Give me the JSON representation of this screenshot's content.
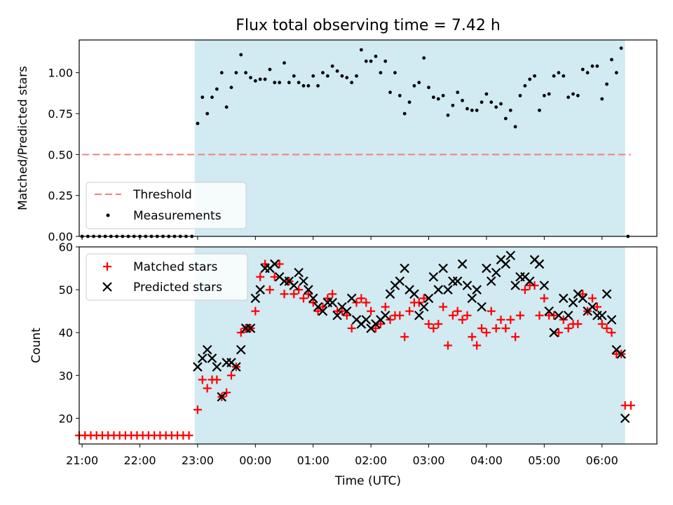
{
  "chart_data": [
    {
      "type": "scatter",
      "title": "Flux total observing time = 7.42 h",
      "ylabel": "Matched/Predicted stars",
      "xlim": [
        20.95,
        30.95
      ],
      "ylim": [
        0,
        1.2
      ],
      "yticks": [
        "0.00",
        "0.25",
        "0.50",
        "0.75",
        "1.00"
      ],
      "shaded_region": [
        22.95,
        30.4
      ],
      "shade_color": "#add8e6",
      "threshold": {
        "name": "Threshold",
        "value": 0.5,
        "color": "#f08080"
      },
      "legend": {
        "placement": "lower-left",
        "entries": [
          "Threshold",
          "Measurements"
        ]
      },
      "series": [
        {
          "name": "Measurements",
          "color": "#000000",
          "x": [
            21.0,
            21.1,
            21.2,
            21.3,
            21.4,
            21.5,
            21.6,
            21.7,
            21.8,
            21.9,
            22.0,
            22.1,
            22.2,
            22.3,
            22.4,
            22.5,
            22.6,
            22.7,
            22.8,
            22.9,
            23.0,
            23.083,
            23.167,
            23.25,
            23.333,
            23.417,
            23.5,
            23.583,
            23.667,
            23.75,
            23.833,
            23.917,
            24.0,
            24.083,
            24.167,
            24.25,
            24.333,
            24.417,
            24.5,
            24.583,
            24.667,
            24.75,
            24.833,
            24.917,
            25.0,
            25.083,
            25.167,
            25.25,
            25.333,
            25.417,
            25.5,
            25.583,
            25.667,
            25.75,
            25.833,
            25.917,
            26.0,
            26.083,
            26.167,
            26.25,
            26.333,
            26.417,
            26.5,
            26.583,
            26.667,
            26.75,
            26.833,
            26.917,
            27.0,
            27.083,
            27.167,
            27.25,
            27.333,
            27.417,
            27.5,
            27.583,
            27.667,
            27.75,
            27.833,
            27.917,
            28.0,
            28.083,
            28.167,
            28.25,
            28.333,
            28.417,
            28.5,
            28.583,
            28.667,
            28.75,
            28.833,
            28.917,
            29.0,
            29.083,
            29.167,
            29.25,
            29.333,
            29.417,
            29.5,
            29.583,
            29.667,
            29.75,
            29.833,
            29.917,
            30.0,
            30.083,
            30.167,
            30.25,
            30.333,
            30.45
          ],
          "y": [
            0,
            0,
            0,
            0,
            0,
            0,
            0,
            0,
            0,
            0,
            0,
            0,
            0,
            0,
            0,
            0,
            0,
            0,
            0,
            0,
            0.69,
            0.85,
            0.75,
            0.85,
            0.9,
            1.0,
            0.79,
            0.91,
            1.0,
            1.11,
            1.0,
            0.97,
            0.95,
            0.96,
            0.96,
            1.02,
            0.94,
            0.94,
            1.06,
            0.94,
            0.98,
            0.94,
            0.92,
            0.92,
            0.98,
            0.92,
            1.0,
            0.98,
            1.04,
            1.01,
            0.98,
            0.97,
            0.94,
            0.98,
            1.14,
            1.07,
            1.07,
            1.1,
            1.0,
            1.07,
            0.88,
            1.0,
            0.86,
            0.75,
            0.82,
            0.92,
            0.94,
            1.09,
            0.91,
            0.85,
            0.84,
            0.86,
            0.74,
            0.8,
            0.88,
            0.83,
            0.78,
            0.77,
            0.77,
            0.82,
            0.87,
            0.82,
            0.79,
            0.81,
            0.72,
            0.77,
            0.67,
            0.86,
            0.92,
            0.96,
            0.98,
            0.77,
            0.86,
            0.87,
            0.98,
            1.0,
            0.98,
            0.85,
            0.87,
            0.86,
            1.02,
            1.0,
            1.04,
            1.04,
            0.84,
            0.93,
            1.08,
            1.0,
            1.15,
            0
          ]
        }
      ]
    },
    {
      "type": "scatter",
      "xlabel": "Time (UTC)",
      "ylabel": "Count",
      "xlim": [
        20.95,
        30.95
      ],
      "ylim": [
        14,
        60
      ],
      "xticks": [
        21,
        22,
        23,
        24,
        25,
        26,
        27,
        28,
        29,
        30
      ],
      "xtick_labels": [
        "21:00",
        "22:00",
        "23:00",
        "00:00",
        "01:00",
        "02:00",
        "03:00",
        "04:00",
        "05:00",
        "06:00"
      ],
      "yticks": [
        20,
        30,
        40,
        50,
        60
      ],
      "shaded_region": [
        22.95,
        30.4
      ],
      "shade_color": "#add8e6",
      "legend": {
        "placement": "upper-left",
        "entries": [
          "Matched stars",
          "Predicted stars"
        ]
      },
      "series": [
        {
          "name": "Matched stars",
          "marker": "plus",
          "color": "#ff0000",
          "x": [
            20.95,
            21.05,
            21.15,
            21.25,
            21.35,
            21.45,
            21.55,
            21.65,
            21.75,
            21.85,
            21.95,
            22.05,
            22.15,
            22.25,
            22.35,
            22.45,
            22.55,
            22.65,
            22.75,
            22.85,
            23.0,
            23.083,
            23.167,
            23.25,
            23.333,
            23.417,
            23.5,
            23.583,
            23.667,
            23.75,
            23.833,
            23.917,
            24.0,
            24.083,
            24.167,
            24.25,
            24.333,
            24.417,
            24.5,
            24.583,
            24.667,
            24.75,
            24.833,
            24.917,
            25.0,
            25.083,
            25.167,
            25.25,
            25.333,
            25.417,
            25.5,
            25.583,
            25.667,
            25.75,
            25.833,
            25.917,
            26.0,
            26.083,
            26.167,
            26.25,
            26.333,
            26.417,
            26.5,
            26.583,
            26.667,
            26.75,
            26.833,
            26.917,
            27.0,
            27.083,
            27.167,
            27.25,
            27.333,
            27.417,
            27.5,
            27.583,
            27.667,
            27.75,
            27.833,
            27.917,
            28.0,
            28.083,
            28.167,
            28.25,
            28.333,
            28.417,
            28.5,
            28.583,
            28.667,
            28.75,
            28.833,
            28.917,
            29.0,
            29.083,
            29.167,
            29.25,
            29.333,
            29.417,
            29.5,
            29.583,
            29.667,
            29.75,
            29.833,
            29.917,
            30.0,
            30.083,
            30.167,
            30.25,
            30.333,
            30.4,
            30.5
          ],
          "y": [
            16,
            16,
            16,
            16,
            16,
            16,
            16,
            16,
            16,
            16,
            16,
            16,
            16,
            16,
            16,
            16,
            16,
            16,
            16,
            16,
            22,
            29,
            27,
            29,
            29,
            25,
            26,
            30,
            32,
            40,
            41,
            41,
            45,
            53,
            56,
            50,
            53,
            56,
            49,
            52,
            49,
            50,
            48,
            49,
            47,
            45,
            46,
            48,
            49,
            45,
            45,
            44,
            41,
            47,
            48,
            47,
            45,
            41,
            42,
            46,
            43,
            44,
            44,
            39,
            45,
            47,
            47,
            48,
            42,
            41,
            42,
            46,
            37,
            44,
            45,
            43,
            44,
            39,
            37,
            41,
            40,
            45,
            41,
            43,
            41,
            43,
            39,
            44,
            50,
            51,
            51,
            44,
            48,
            44,
            44,
            40,
            43,
            41,
            42,
            42,
            49,
            45,
            48,
            46,
            42,
            41,
            40,
            35,
            35,
            23,
            23
          ]
        },
        {
          "name": "Predicted stars",
          "marker": "x",
          "color": "#000000",
          "x": [
            23.0,
            23.083,
            23.167,
            23.25,
            23.333,
            23.417,
            23.5,
            23.583,
            23.667,
            23.75,
            23.833,
            23.917,
            24.0,
            24.083,
            24.167,
            24.25,
            24.333,
            24.417,
            24.5,
            24.583,
            24.667,
            24.75,
            24.833,
            24.917,
            25.0,
            25.083,
            25.167,
            25.25,
            25.333,
            25.417,
            25.5,
            25.583,
            25.667,
            25.75,
            25.833,
            25.917,
            26.0,
            26.083,
            26.167,
            26.25,
            26.333,
            26.417,
            26.5,
            26.583,
            26.667,
            26.75,
            26.833,
            26.917,
            27.0,
            27.083,
            27.167,
            27.25,
            27.333,
            27.417,
            27.5,
            27.583,
            27.667,
            27.75,
            27.833,
            27.917,
            28.0,
            28.083,
            28.167,
            28.25,
            28.333,
            28.417,
            28.5,
            28.583,
            28.667,
            28.75,
            28.833,
            28.917,
            29.0,
            29.083,
            29.167,
            29.25,
            29.333,
            29.417,
            29.5,
            29.583,
            29.667,
            29.75,
            29.833,
            29.917,
            30.0,
            30.083,
            30.167,
            30.25,
            30.333,
            30.4
          ],
          "y": [
            32,
            34,
            36,
            34,
            32,
            25,
            33,
            33,
            32,
            36,
            41,
            41,
            48,
            50,
            55,
            55,
            56,
            53,
            52,
            52,
            51,
            54,
            52,
            50,
            48,
            46,
            45,
            47,
            47,
            44,
            46,
            45,
            48,
            43,
            42,
            43,
            41,
            42,
            43,
            44,
            49,
            51,
            52,
            55,
            50,
            49,
            44,
            46,
            48,
            53,
            50,
            55,
            50,
            52,
            52,
            56,
            51,
            48,
            50,
            46,
            55,
            52,
            54,
            57,
            56,
            58,
            51,
            53,
            53,
            52,
            57,
            56,
            51,
            45,
            40,
            44,
            48,
            44,
            47,
            49,
            48,
            45,
            46,
            44,
            44,
            49,
            43,
            36,
            35,
            20
          ]
        }
      ]
    }
  ]
}
